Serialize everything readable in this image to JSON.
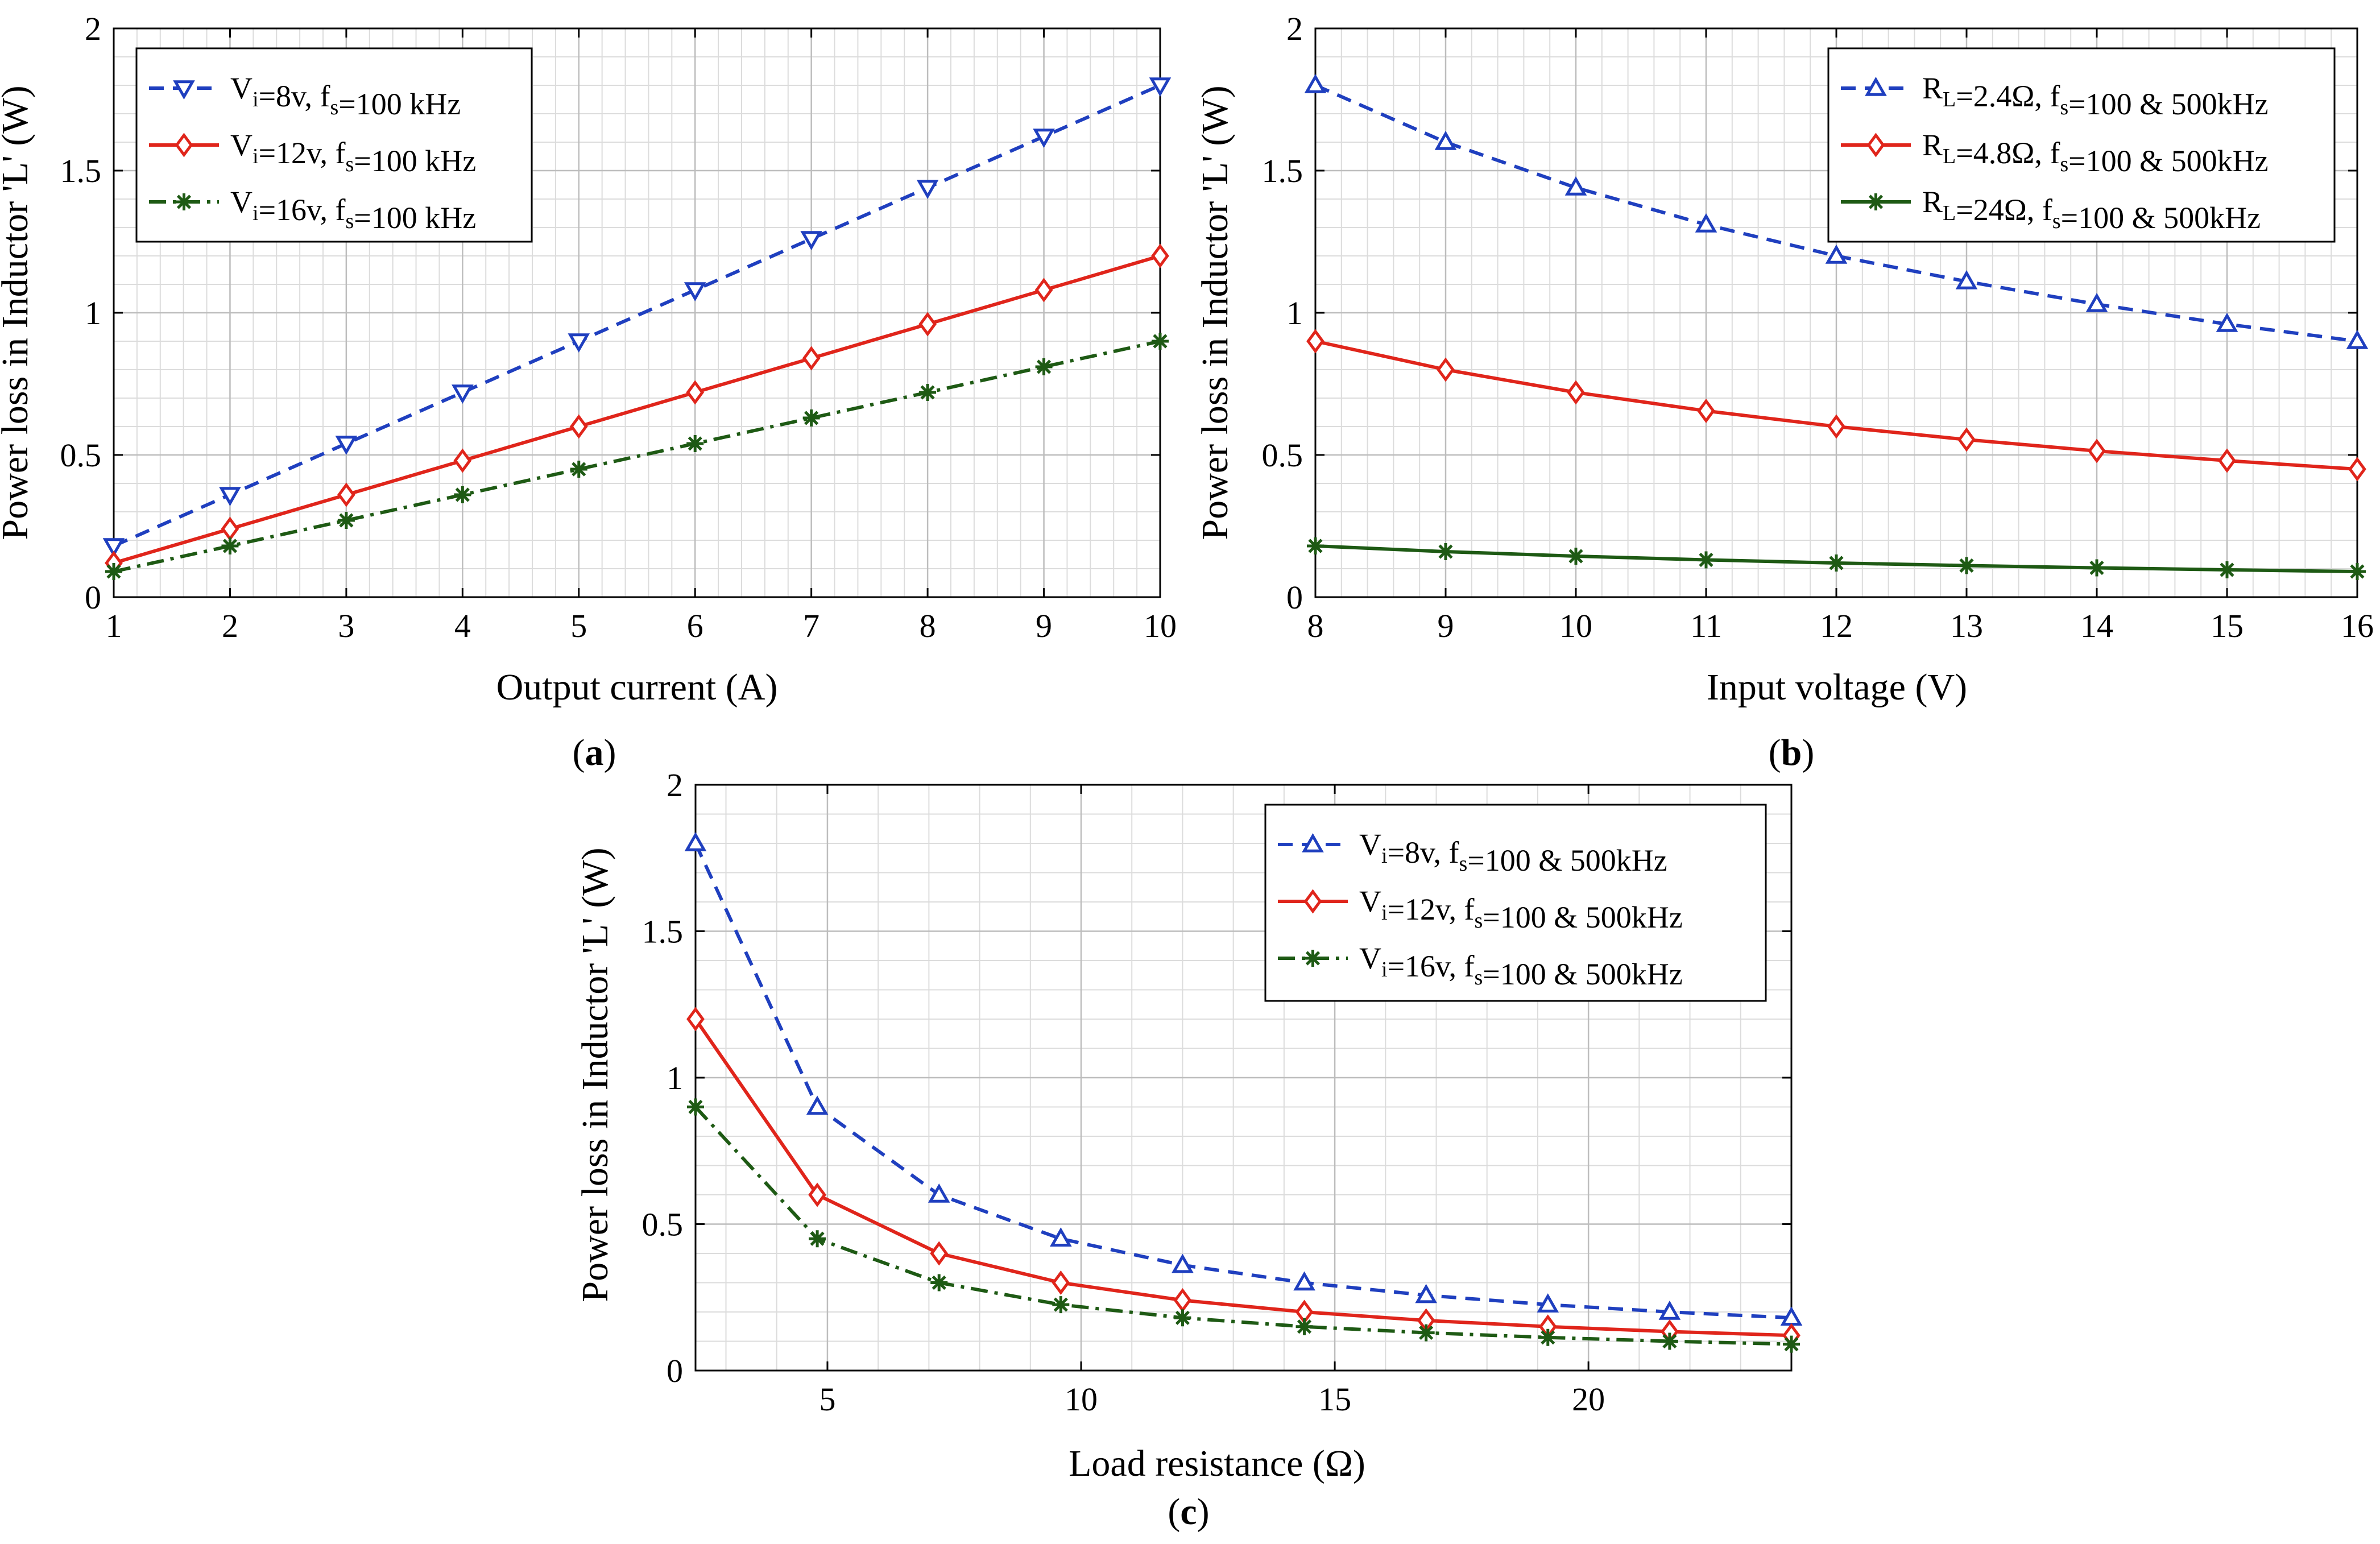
{
  "figure": {
    "title": "Power loss in inductor L"
  },
  "colors": {
    "blue": "#1f3fbf",
    "red": "#e0251b",
    "green": "#1e5a14",
    "grid": "#dcdcdc",
    "axis": "#000000"
  },
  "chart_data": [
    {
      "id": "a",
      "type": "line",
      "caption": {
        "open": "(",
        "letter": "a",
        "close": ")"
      },
      "xlabel": "Output current (A)",
      "ylabel": "Power loss in Inductor 'L' (W)",
      "xlim": [
        1,
        10
      ],
      "ylim": [
        0,
        2
      ],
      "xticks": [
        1,
        2,
        3,
        4,
        5,
        6,
        7,
        8,
        9,
        10
      ],
      "xtick_labels": [
        "1",
        "2",
        "3",
        "4",
        "5",
        "6",
        "7",
        "8",
        "9",
        "10"
      ],
      "yticks": [
        0,
        0.5,
        1,
        1.5,
        2
      ],
      "ytick_labels": [
        "0",
        "0.5",
        "1",
        "1.5",
        "2"
      ],
      "legend_position": "top-left",
      "series": [
        {
          "name": "Vi=8v, fs=100 kHz",
          "legend": {
            "var": "V",
            "sub1": "i",
            "mid": "=8v, f",
            "sub2": "s",
            "tail": "=100 kHz"
          },
          "color": "blue",
          "dash": "dashed",
          "marker": "triangle-down",
          "x": [
            1,
            2,
            3,
            4,
            5,
            6,
            7,
            8,
            9,
            10
          ],
          "y": [
            0.18,
            0.36,
            0.54,
            0.72,
            0.9,
            1.08,
            1.26,
            1.44,
            1.62,
            1.8
          ]
        },
        {
          "name": "Vi=12v, fs=100 kHz",
          "legend": {
            "var": "V",
            "sub1": "i",
            "mid": "=12v, f",
            "sub2": "s",
            "tail": "=100 kHz"
          },
          "color": "red",
          "dash": "solid",
          "marker": "diamond",
          "x": [
            1,
            2,
            3,
            4,
            5,
            6,
            7,
            8,
            9,
            10
          ],
          "y": [
            0.12,
            0.24,
            0.36,
            0.48,
            0.6,
            0.72,
            0.84,
            0.96,
            1.08,
            1.2
          ]
        },
        {
          "name": "Vi=16v, fs=100 kHz",
          "legend": {
            "var": "V",
            "sub1": "i",
            "mid": "=16v, f",
            "sub2": "s",
            "tail": "=100 kHz"
          },
          "color": "green",
          "dash": "dashdot",
          "marker": "asterisk",
          "x": [
            1,
            2,
            3,
            4,
            5,
            6,
            7,
            8,
            9,
            10
          ],
          "y": [
            0.09,
            0.18,
            0.27,
            0.36,
            0.45,
            0.54,
            0.63,
            0.72,
            0.81,
            0.9
          ]
        }
      ]
    },
    {
      "id": "b",
      "type": "line",
      "caption": {
        "open": "(",
        "letter": "b",
        "close": ")"
      },
      "xlabel": "Input voltage (V)",
      "ylabel": "Power loss in Inductor 'L' (W)",
      "xlim": [
        8,
        16
      ],
      "ylim": [
        0,
        2
      ],
      "xticks": [
        8,
        9,
        10,
        11,
        12,
        13,
        14,
        15,
        16
      ],
      "xtick_labels": [
        "8",
        "9",
        "10",
        "11",
        "12",
        "13",
        "14",
        "15",
        "16"
      ],
      "yticks": [
        0,
        0.5,
        1,
        1.5,
        2
      ],
      "ytick_labels": [
        "0",
        "0.5",
        "1",
        "1.5",
        "2"
      ],
      "legend_position": "top-right",
      "series": [
        {
          "name": "RL=2.4Ω, fs=100 & 500kHz",
          "legend": {
            "var": "R",
            "sub1": "L",
            "mid": "=2.4Ω, f",
            "sub2": "s",
            "tail": "=100 & 500kHz"
          },
          "color": "blue",
          "dash": "dashed",
          "marker": "triangle-up",
          "x": [
            8,
            9,
            10,
            11,
            12,
            13,
            14,
            15,
            16
          ],
          "y": [
            1.8,
            1.6,
            1.44,
            1.31,
            1.2,
            1.11,
            1.03,
            0.96,
            0.9
          ]
        },
        {
          "name": "RL=4.8Ω, fs=100 & 500kHz",
          "legend": {
            "var": "R",
            "sub1": "L",
            "mid": "=4.8Ω, f",
            "sub2": "s",
            "tail": "=100 & 500kHz"
          },
          "color": "red",
          "dash": "solid",
          "marker": "diamond",
          "x": [
            8,
            9,
            10,
            11,
            12,
            13,
            14,
            15,
            16
          ],
          "y": [
            0.9,
            0.8,
            0.72,
            0.655,
            0.6,
            0.554,
            0.514,
            0.48,
            0.45
          ]
        },
        {
          "name": "RL=24Ω, fs=100 & 500kHz",
          "legend": {
            "var": "R",
            "sub1": "L",
            "mid": "=24Ω, f",
            "sub2": "s",
            "tail": "=100 & 500kHz"
          },
          "color": "green",
          "dash": "solid",
          "marker": "asterisk",
          "x": [
            8,
            9,
            10,
            11,
            12,
            13,
            14,
            15,
            16
          ],
          "y": [
            0.18,
            0.16,
            0.144,
            0.131,
            0.12,
            0.111,
            0.103,
            0.096,
            0.09
          ]
        }
      ]
    },
    {
      "id": "c",
      "type": "line",
      "caption": {
        "open": "(",
        "letter": "c",
        "close": ")"
      },
      "xlabel": "Load resistance (Ω)",
      "ylabel": "Power loss in Inductor 'L' (W)",
      "xlim": [
        2.4,
        24
      ],
      "ylim": [
        0,
        2
      ],
      "xticks": [
        5,
        10,
        15,
        20
      ],
      "xtick_labels": [
        "5",
        "10",
        "15",
        "20"
      ],
      "yticks": [
        0,
        0.5,
        1,
        1.5,
        2
      ],
      "ytick_labels": [
        "0",
        "0.5",
        "1",
        "1.5",
        "2"
      ],
      "legend_position": "top-right",
      "series": [
        {
          "name": "Vi=8v, fs=100 & 500kHz",
          "legend": {
            "var": "V",
            "sub1": "i",
            "mid": "=8v, f",
            "sub2": "s",
            "tail": "=100 & 500kHz"
          },
          "color": "blue",
          "dash": "dashed",
          "marker": "triangle-up",
          "x": [
            2.4,
            4.8,
            7.2,
            9.6,
            12,
            14.4,
            16.8,
            19.2,
            21.6,
            24
          ],
          "y": [
            1.8,
            0.9,
            0.6,
            0.45,
            0.36,
            0.3,
            0.257,
            0.225,
            0.2,
            0.18
          ]
        },
        {
          "name": "Vi=12v, fs=100 & 500kHz",
          "legend": {
            "var": "V",
            "sub1": "i",
            "mid": "=12v, f",
            "sub2": "s",
            "tail": "=100 & 500kHz"
          },
          "color": "red",
          "dash": "solid",
          "marker": "diamond",
          "x": [
            2.4,
            4.8,
            7.2,
            9.6,
            12,
            14.4,
            16.8,
            19.2,
            21.6,
            24
          ],
          "y": [
            1.2,
            0.6,
            0.4,
            0.3,
            0.24,
            0.2,
            0.171,
            0.15,
            0.133,
            0.12
          ]
        },
        {
          "name": "Vi=16v, fs=100 & 500kHz",
          "legend": {
            "var": "V",
            "sub1": "i",
            "mid": "=16v, f",
            "sub2": "s",
            "tail": "=100 & 500kHz"
          },
          "color": "green",
          "dash": "dashdot",
          "marker": "asterisk",
          "x": [
            2.4,
            4.8,
            7.2,
            9.6,
            12,
            14.4,
            16.8,
            19.2,
            21.6,
            24
          ],
          "y": [
            0.9,
            0.45,
            0.3,
            0.225,
            0.18,
            0.15,
            0.129,
            0.113,
            0.1,
            0.09
          ]
        }
      ]
    }
  ]
}
